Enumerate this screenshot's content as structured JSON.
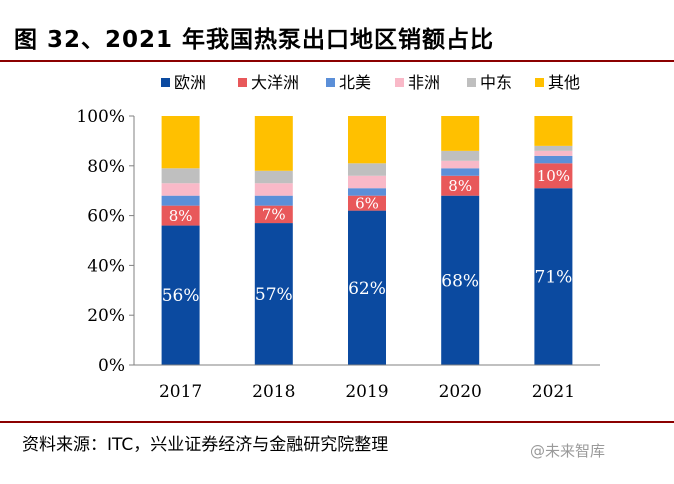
{
  "title": "图 32、2021 年我国热泵出口地区销额占比",
  "source": "资料来源：ITC，兴业证券经济与金融研究院整理",
  "watermark": "@未来智库",
  "chart_data": {
    "type": "bar",
    "stacked": true,
    "percent": true,
    "categories": [
      "2017",
      "2018",
      "2019",
      "2020",
      "2021"
    ],
    "ylim": [
      0,
      100
    ],
    "yticks": [
      0,
      20,
      40,
      60,
      80,
      100
    ],
    "ytick_labels": [
      "0%",
      "20%",
      "40%",
      "60%",
      "80%",
      "100%"
    ],
    "legend_position": "top",
    "grid": false,
    "series": [
      {
        "name": "欧洲",
        "color": "#0b4aa0",
        "values": [
          56,
          57,
          62,
          68,
          71
        ],
        "labels": [
          "56%",
          "57%",
          "62%",
          "68%",
          "71%"
        ]
      },
      {
        "name": "大洋洲",
        "color": "#e8585a",
        "values": [
          8,
          7,
          6,
          8,
          10
        ],
        "labels": [
          "8%",
          "7%",
          "6%",
          "8%",
          "10%"
        ]
      },
      {
        "name": "北美",
        "color": "#5b8fd8",
        "values": [
          4,
          4,
          3,
          3,
          3
        ]
      },
      {
        "name": "非洲",
        "color": "#f9b9c8",
        "values": [
          5,
          5,
          5,
          3,
          2
        ]
      },
      {
        "name": "中东",
        "color": "#bfbfbf",
        "values": [
          6,
          5,
          5,
          4,
          2
        ]
      },
      {
        "name": "其他",
        "color": "#ffc000",
        "values": [
          21,
          22,
          19,
          14,
          12
        ]
      }
    ]
  }
}
